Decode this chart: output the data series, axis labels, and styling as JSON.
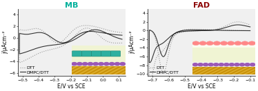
{
  "fig_width": 3.74,
  "fig_height": 1.32,
  "dpi": 100,
  "panel_titles": [
    "MB",
    "FAD"
  ],
  "title_colors": [
    "#00b09b",
    "#8b0000"
  ],
  "title_fontsize": 8,
  "xlabel": "E/V vs SCE",
  "ylabel": "j/μAcm⁻²",
  "xlabel_fontsize": 5.5,
  "ylabel_fontsize": 5.5,
  "tick_fontsize": 4.5,
  "legend_labels": [
    "DTT",
    "DMPC/DTT"
  ],
  "legend_fontsize": 4.5,
  "line_color_dtt": "#999999",
  "line_color_dmpc": "#333333",
  "bg_color": "#f0f0f0",
  "panel1_xlim": [
    -0.53,
    0.14
  ],
  "panel1_ylim": [
    -6.5,
    5.0
  ],
  "panel1_xticks": [
    -0.5,
    -0.4,
    -0.3,
    -0.2,
    -0.1,
    0.0,
    0.1
  ],
  "panel1_yticks": [
    -6,
    -4,
    -2,
    0,
    2,
    4
  ],
  "panel2_xlim": [
    -0.73,
    -0.07
  ],
  "panel2_ylim": [
    -10.5,
    5.0
  ],
  "panel2_xticks": [
    -0.7,
    -0.6,
    -0.5,
    -0.4,
    -0.3,
    -0.2,
    -0.1
  ],
  "panel2_yticks": [
    -10,
    -8,
    -6,
    -4,
    -2,
    0,
    2,
    4
  ],
  "gold_color": "#c8900a",
  "gold_stripe_color": "#e8c040",
  "dtt_dot_color": "#9b59b6",
  "bilayer_color": "#e8f5e8",
  "mb_molecule_color": "#2db0a0",
  "mb_molecule_edge": "#1a8070",
  "fad_bump_color": "#ff8888",
  "fad_bump_edge": "#cc4444"
}
